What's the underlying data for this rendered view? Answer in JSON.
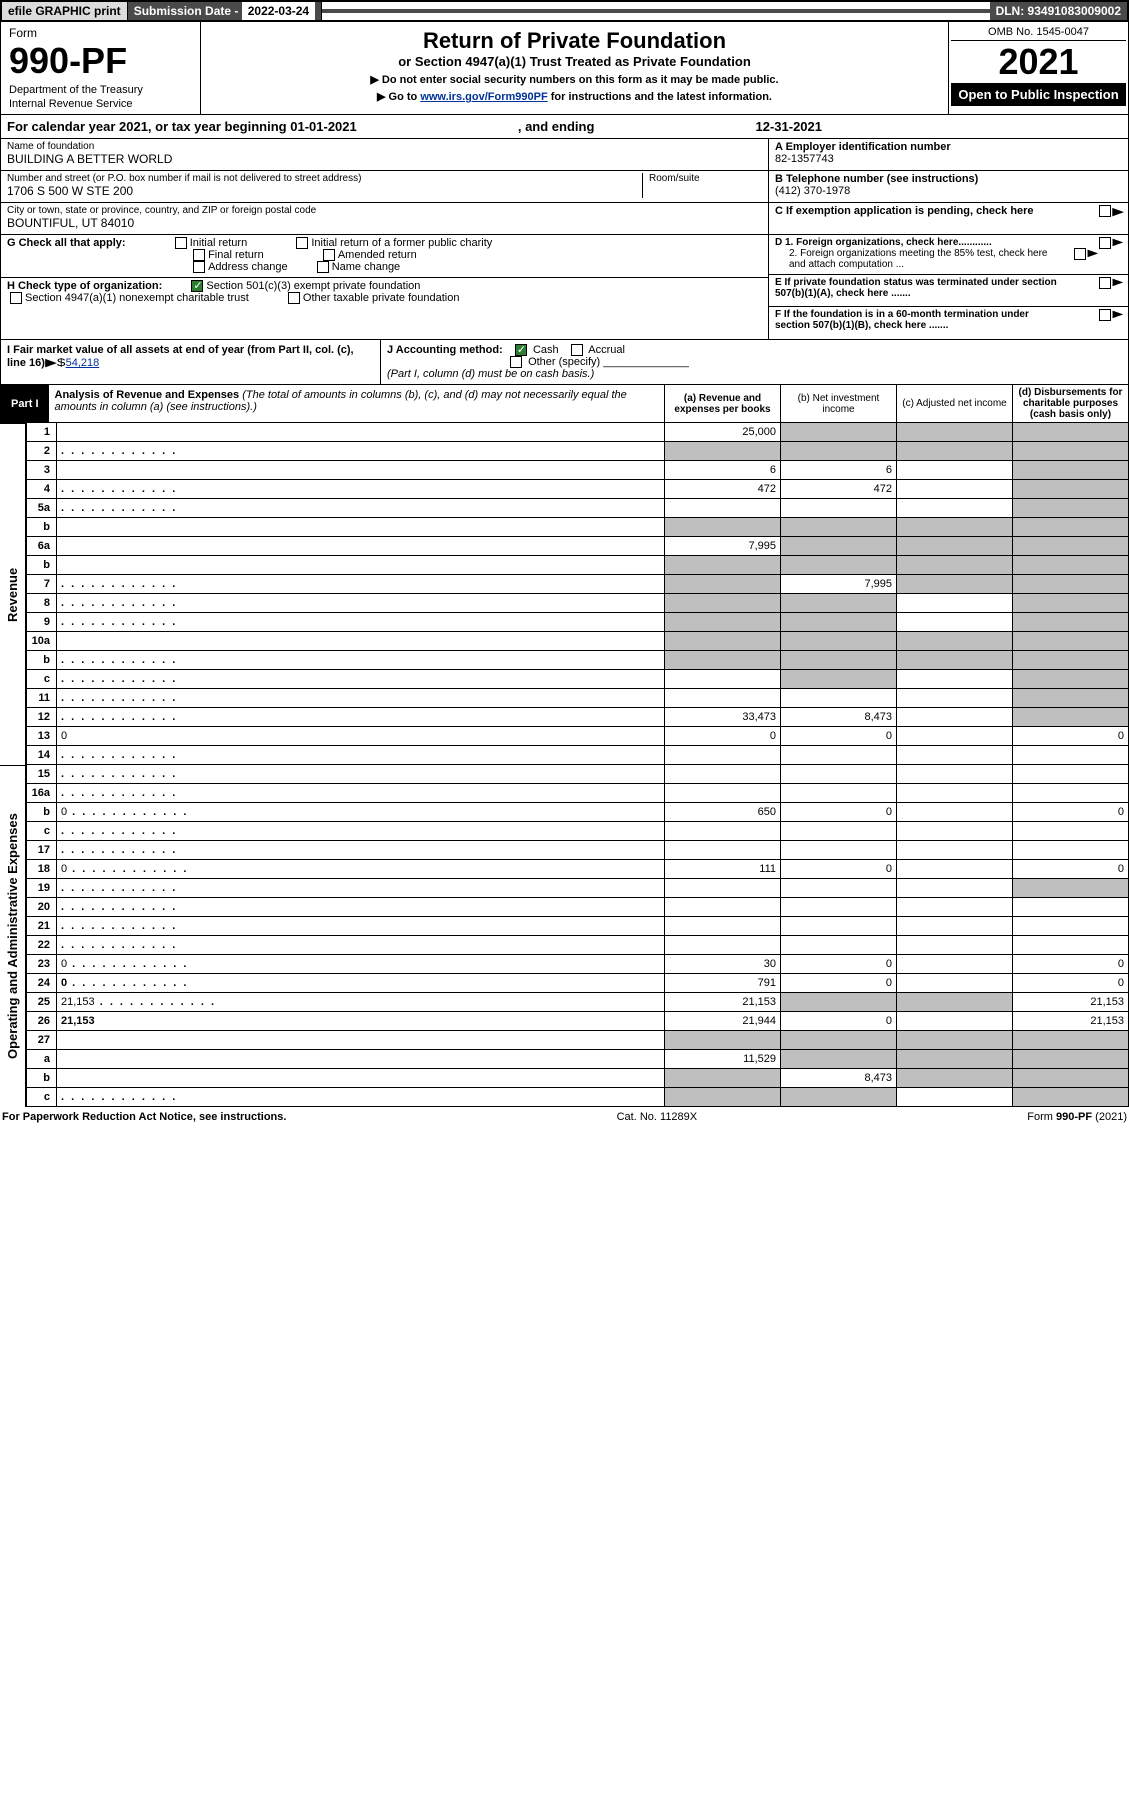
{
  "topbar": {
    "efile": "efile GRAPHIC print",
    "subdate_label": "Submission Date - ",
    "subdate_value": "2022-03-24",
    "dln": "DLN: 93491083009002"
  },
  "header": {
    "form_label": "Form",
    "form_number": "990-PF",
    "dept1": "Department of the Treasury",
    "dept2": "Internal Revenue Service",
    "title": "Return of Private Foundation",
    "subtitle": "or Section 4947(a)(1) Trust Treated as Private Foundation",
    "note1": "▶ Do not enter social security numbers on this form as it may be made public.",
    "note2_pre": "▶ Go to ",
    "note2_link": "www.irs.gov/Form990PF",
    "note2_post": " for instructions and the latest information.",
    "omb": "OMB No. 1545-0047",
    "year": "2021",
    "open": "Open to Public Inspection"
  },
  "calyear": {
    "text1": "For calendar year 2021, or tax year beginning ",
    "begin": "01-01-2021",
    "text2": " , and ending ",
    "end": "12-31-2021"
  },
  "foundation": {
    "name_lbl": "Name of foundation",
    "name": "BUILDING A BETTER WORLD",
    "addr_lbl": "Number and street (or P.O. box number if mail is not delivered to street address)",
    "addr": "1706 S 500 W STE 200",
    "room_lbl": "Room/suite",
    "city_lbl": "City or town, state or province, country, and ZIP or foreign postal code",
    "city": "BOUNTIFUL, UT  84010"
  },
  "right": {
    "a_lbl": "A Employer identification number",
    "a_val": "82-1357743",
    "b_lbl": "B Telephone number (see instructions)",
    "b_val": "(412) 370-1978",
    "c_lbl": "C If exemption application is pending, check here",
    "d1": "D 1. Foreign organizations, check here............",
    "d2": "2. Foreign organizations meeting the 85% test, check here and attach computation ...",
    "e": "E  If private foundation status was terminated under section 507(b)(1)(A), check here .......",
    "f": "F  If the foundation is in a 60-month termination under section 507(b)(1)(B), check here .......",
    "arrow": "▶"
  },
  "g": {
    "label": "G Check all that apply:",
    "opts": [
      "Initial return",
      "Final return",
      "Address change",
      "Initial return of a former public charity",
      "Amended return",
      "Name change"
    ]
  },
  "h": {
    "label": "H Check type of organization:",
    "opt1": "Section 501(c)(3) exempt private foundation",
    "opt2": "Section 4947(a)(1) nonexempt charitable trust",
    "opt3": "Other taxable private foundation"
  },
  "i": {
    "label": "I Fair market value of all assets at end of year (from Part II, col. (c), line 16)",
    "arrow": "▶$",
    "value": "54,218"
  },
  "j": {
    "label": "J Accounting method:",
    "cash": "Cash",
    "accrual": "Accrual",
    "other": "Other (specify)",
    "note": "(Part I, column (d) must be on cash basis.)"
  },
  "part1": {
    "label": "Part I",
    "title": "Analysis of Revenue and Expenses",
    "title_note": " (The total of amounts in columns (b), (c), and (d) may not necessarily equal the amounts in column (a) (see instructions).)",
    "cols": {
      "a": "(a) Revenue and expenses per books",
      "b": "(b) Net investment income",
      "c": "(c) Adjusted net income",
      "d": "(d) Disbursements for charitable purposes (cash basis only)"
    }
  },
  "side": {
    "rev": "Revenue",
    "exp": "Operating and Administrative Expenses"
  },
  "rows": [
    {
      "n": "1",
      "d": "",
      "a": "25,000",
      "b": "",
      "c": "",
      "shade_bcd": true
    },
    {
      "n": "2",
      "d": "",
      "a": "",
      "b": "",
      "c": "",
      "shade_all": true,
      "dots": true
    },
    {
      "n": "3",
      "d": "",
      "a": "6",
      "b": "6",
      "c": "",
      "shade_d": true
    },
    {
      "n": "4",
      "d": "",
      "a": "472",
      "b": "472",
      "c": "",
      "shade_d": true,
      "dots": true
    },
    {
      "n": "5a",
      "d": "",
      "a": "",
      "b": "",
      "c": "",
      "shade_d": true,
      "dots": true
    },
    {
      "n": "b",
      "d": "",
      "a": "",
      "b": "",
      "c": "",
      "shade_all": true
    },
    {
      "n": "6a",
      "d": "",
      "a": "7,995",
      "b": "",
      "c": "",
      "shade_bcd": true
    },
    {
      "n": "b",
      "d": "",
      "a": "",
      "b": "",
      "c": "",
      "shade_all": true
    },
    {
      "n": "7",
      "d": "",
      "a": "",
      "b": "7,995",
      "c": "",
      "shade_a": true,
      "shade_cd": true,
      "dots": true
    },
    {
      "n": "8",
      "d": "",
      "a": "",
      "b": "",
      "c": "",
      "shade_ab": true,
      "shade_d": true,
      "dots": true
    },
    {
      "n": "9",
      "d": "",
      "a": "",
      "b": "",
      "c": "",
      "shade_ab": true,
      "shade_d": true,
      "dots": true
    },
    {
      "n": "10a",
      "d": "",
      "a": "",
      "b": "",
      "c": "",
      "shade_all": true
    },
    {
      "n": "b",
      "d": "",
      "a": "",
      "b": "",
      "c": "",
      "shade_all": true,
      "dots": true
    },
    {
      "n": "c",
      "d": "",
      "a": "",
      "b": "",
      "c": "",
      "shade_b": true,
      "shade_d": true,
      "dots": true
    },
    {
      "n": "11",
      "d": "",
      "a": "",
      "b": "",
      "c": "",
      "shade_d": true,
      "dots": true
    },
    {
      "n": "12",
      "d": "",
      "a": "33,473",
      "b": "8,473",
      "c": "",
      "bold": true,
      "shade_d": true,
      "dots": true
    },
    {
      "n": "13",
      "d": "0",
      "a": "0",
      "b": "0",
      "c": ""
    },
    {
      "n": "14",
      "d": "",
      "a": "",
      "b": "",
      "c": "",
      "dots": true
    },
    {
      "n": "15",
      "d": "",
      "a": "",
      "b": "",
      "c": "",
      "dots": true
    },
    {
      "n": "16a",
      "d": "",
      "a": "",
      "b": "",
      "c": "",
      "dots": true
    },
    {
      "n": "b",
      "d": "0",
      "a": "650",
      "b": "0",
      "c": "",
      "dots": true
    },
    {
      "n": "c",
      "d": "",
      "a": "",
      "b": "",
      "c": "",
      "dots": true
    },
    {
      "n": "17",
      "d": "",
      "a": "",
      "b": "",
      "c": "",
      "dots": true
    },
    {
      "n": "18",
      "d": "0",
      "a": "111",
      "b": "0",
      "c": "",
      "dots": true
    },
    {
      "n": "19",
      "d": "",
      "a": "",
      "b": "",
      "c": "",
      "shade_d": true,
      "dots": true
    },
    {
      "n": "20",
      "d": "",
      "a": "",
      "b": "",
      "c": "",
      "dots": true
    },
    {
      "n": "21",
      "d": "",
      "a": "",
      "b": "",
      "c": "",
      "dots": true
    },
    {
      "n": "22",
      "d": "",
      "a": "",
      "b": "",
      "c": "",
      "dots": true
    },
    {
      "n": "23",
      "d": "0",
      "a": "30",
      "b": "0",
      "c": "",
      "dots": true
    },
    {
      "n": "24",
      "d": "0",
      "a": "791",
      "b": "0",
      "c": "",
      "bold": true,
      "dots": true
    },
    {
      "n": "25",
      "d": "21,153",
      "a": "21,153",
      "b": "",
      "c": "",
      "shade_bc": true,
      "dots": true
    },
    {
      "n": "26",
      "d": "21,153",
      "a": "21,944",
      "b": "0",
      "c": "",
      "bold": true
    },
    {
      "n": "27",
      "d": "",
      "a": "",
      "b": "",
      "c": "",
      "shade_all": true
    },
    {
      "n": "a",
      "d": "",
      "a": "11,529",
      "b": "",
      "c": "",
      "bold": true,
      "shade_bcd": true
    },
    {
      "n": "b",
      "d": "",
      "a": "",
      "b": "8,473",
      "c": "",
      "bold": true,
      "shade_a": true,
      "shade_cd": true
    },
    {
      "n": "c",
      "d": "",
      "a": "",
      "b": "",
      "c": "",
      "bold": true,
      "shade_ab": true,
      "shade_d": true,
      "dots": true
    }
  ],
  "footer": {
    "left": "For Paperwork Reduction Act Notice, see instructions.",
    "mid": "Cat. No. 11289X",
    "right": "Form 990-PF (2021)"
  }
}
